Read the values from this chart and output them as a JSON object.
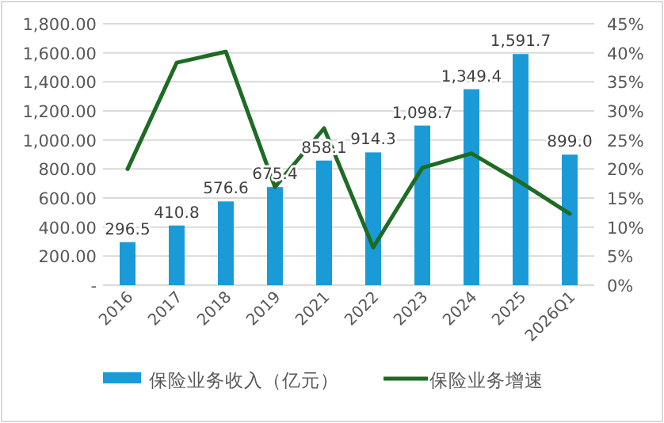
{
  "chart_data": {
    "type": "bar",
    "categories": [
      "2016",
      "2017",
      "2018",
      "2019",
      "2021",
      "2022",
      "2023",
      "2024",
      "2025",
      "2026Q1"
    ],
    "series": [
      {
        "name": "保险业务收入（亿元）",
        "color": "#1a9bd7",
        "values": [
          296.5,
          410.8,
          576.6,
          675.4,
          858.1,
          914.3,
          1098.7,
          1349.4,
          1591.7,
          899.0
        ],
        "value_labels": [
          "296.5",
          "410.8",
          "576.6",
          "675.4",
          "858.1",
          "914.3",
          "1,098.7",
          "1,349.4",
          "1,591.7",
          "899.0"
        ]
      },
      {
        "name": "保险业务增速",
        "type": "line",
        "axis": "y2",
        "color": "#1e6b24",
        "values": [
          20,
          38.3,
          40.2,
          16.9,
          27,
          6.5,
          20.2,
          22.7,
          17.7,
          12.3
        ]
      }
    ],
    "ylim": [
      0,
      1800
    ],
    "yticks": [
      {
        "value": 0,
        "label": "-"
      },
      {
        "value": 200,
        "label": "200.00"
      },
      {
        "value": 400,
        "label": "400.00"
      },
      {
        "value": 600,
        "label": "600.00"
      },
      {
        "value": 800,
        "label": "800.00"
      },
      {
        "value": 1000,
        "label": "1,000.00"
      },
      {
        "value": 1200,
        "label": "1,200.00"
      },
      {
        "value": 1400,
        "label": "1,400.00"
      },
      {
        "value": 1600,
        "label": "1,600.00"
      },
      {
        "value": 1800,
        "label": "1,800.00"
      }
    ],
    "y2lim": [
      0,
      45
    ],
    "y2ticks": [
      {
        "value": 0,
        "label": "0%"
      },
      {
        "value": 5,
        "label": "5%"
      },
      {
        "value": 10,
        "label": "10%"
      },
      {
        "value": 15,
        "label": "15%"
      },
      {
        "value": 20,
        "label": "20%"
      },
      {
        "value": 25,
        "label": "25%"
      },
      {
        "value": 30,
        "label": "30%"
      },
      {
        "value": 35,
        "label": "35%"
      },
      {
        "value": 40,
        "label": "40%"
      },
      {
        "value": 45,
        "label": "45%"
      }
    ],
    "grid": "y",
    "legend": "bottom"
  }
}
